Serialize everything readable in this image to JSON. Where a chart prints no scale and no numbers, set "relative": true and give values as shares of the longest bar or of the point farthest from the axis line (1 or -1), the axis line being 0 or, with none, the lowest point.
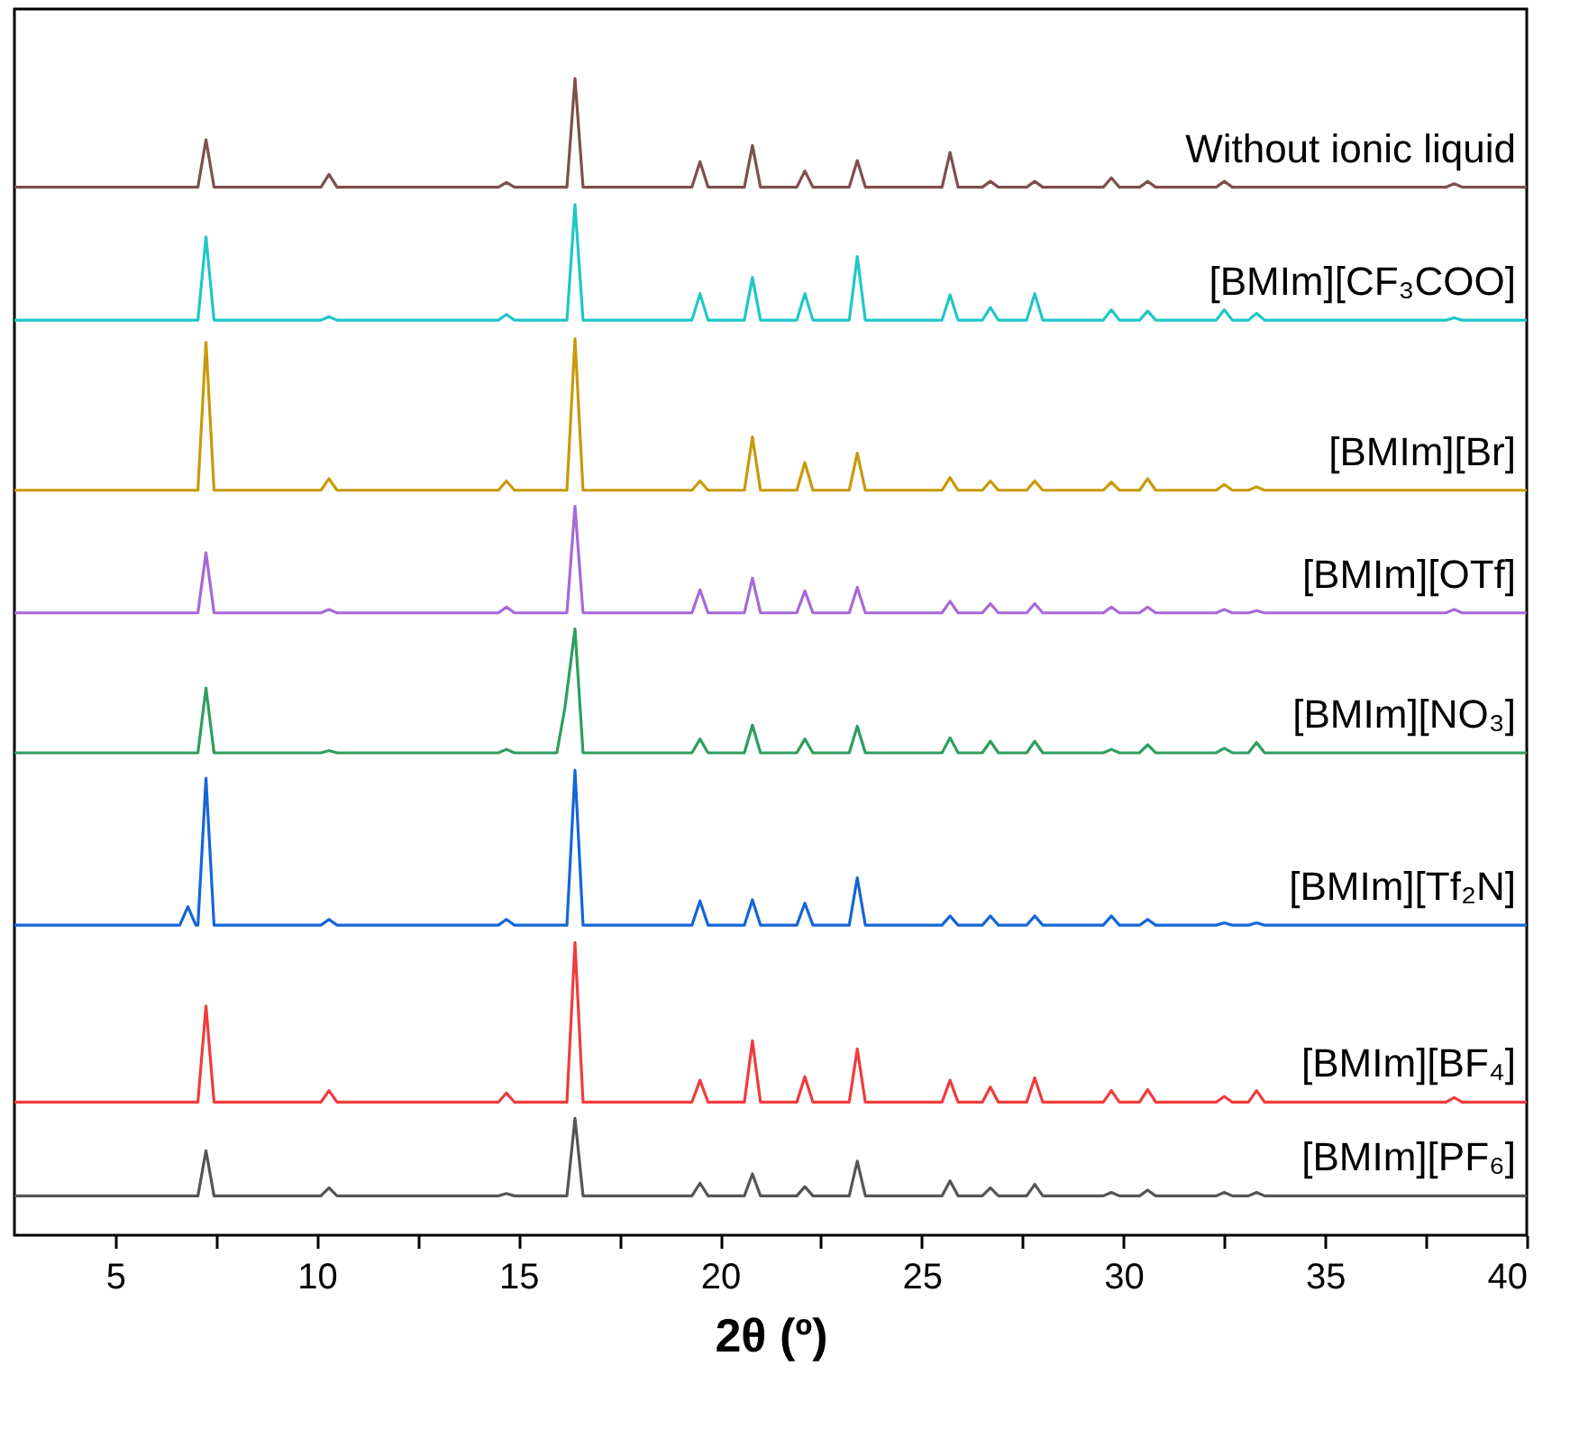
{
  "chart_data": {
    "type": "line",
    "relative": true,
    "xlabel": "2θ (º)",
    "x": [
      2.5,
      6.6,
      6.8,
      7.0,
      7.05,
      7.25,
      7.45,
      10.1,
      10.3,
      10.5,
      14.5,
      14.7,
      14.9,
      16.2,
      16.4,
      16.6,
      19.3,
      19.5,
      19.7,
      20.6,
      20.8,
      21.0,
      21.9,
      22.1,
      22.3,
      23.2,
      23.4,
      23.6,
      25.5,
      25.7,
      25.9,
      26.5,
      26.7,
      26.9,
      27.6,
      27.8,
      28.0,
      29.5,
      29.7,
      29.9,
      30.4,
      30.6,
      30.8,
      32.3,
      32.5,
      32.7,
      33.1,
      33.3,
      33.5,
      38.0,
      38.2,
      38.4,
      40
    ],
    "xlim": [
      2.5,
      40
    ],
    "xticks": [
      5,
      {
        "value": 7.5,
        "label": null
      },
      10,
      {
        "value": 12.5,
        "label": null
      },
      15,
      {
        "value": 17.5,
        "label": null
      },
      20,
      {
        "value": 22.5,
        "label": null
      },
      25,
      {
        "value": 27.5,
        "label": null
      },
      30,
      {
        "value": 32.5,
        "label": null
      },
      35,
      {
        "value": 37.5,
        "label": null
      },
      40
    ],
    "series": [
      {
        "name": "Without ionic liquid",
        "color": "#7f4f4f",
        "values": [
          0.906,
          0.906,
          0.906,
          0.906,
          0.906,
          0.947,
          0.906,
          0.906,
          0.917,
          0.906,
          0.906,
          0.91,
          0.906,
          0.906,
          1,
          0.906,
          0.906,
          0.928,
          0.906,
          0.906,
          0.942,
          0.906,
          0.906,
          0.92,
          0.906,
          0.906,
          0.929,
          0.906,
          0.906,
          0.936,
          0.906,
          0.906,
          0.911,
          0.906,
          0.906,
          0.911,
          0.906,
          0.906,
          0.914,
          0.906,
          0.906,
          0.911,
          0.906,
          0.906,
          0.911,
          0.906,
          0.906,
          0.906,
          0.906,
          0.906,
          0.909,
          0.906,
          0.906
        ]
      },
      {
        "name": "[BMIm][CF₃COO]",
        "color": "#1fc7c7",
        "values": [
          0.791,
          0.791,
          0.791,
          0.791,
          0.791,
          0.863,
          0.791,
          0.791,
          0.794,
          0.791,
          0.791,
          0.796,
          0.791,
          0.791,
          0.891,
          0.791,
          0.791,
          0.814,
          0.791,
          0.791,
          0.828,
          0.791,
          0.791,
          0.814,
          0.791,
          0.791,
          0.846,
          0.791,
          0.791,
          0.813,
          0.791,
          0.791,
          0.802,
          0.791,
          0.791,
          0.814,
          0.791,
          0.791,
          0.8,
          0.791,
          0.791,
          0.799,
          0.791,
          0.791,
          0.8,
          0.791,
          0.791,
          0.797,
          0.791,
          0.791,
          0.793,
          0.791,
          0.791
        ]
      },
      {
        "name": "[BMIm][Br]",
        "color": "#c89a0a",
        "values": [
          0.644,
          0.644,
          0.644,
          0.644,
          0.644,
          0.772,
          0.644,
          0.644,
          0.654,
          0.644,
          0.644,
          0.652,
          0.644,
          0.644,
          0.775,
          0.644,
          0.644,
          0.652,
          0.644,
          0.644,
          0.69,
          0.644,
          0.644,
          0.668,
          0.644,
          0.644,
          0.676,
          0.644,
          0.644,
          0.655,
          0.644,
          0.644,
          0.652,
          0.644,
          0.644,
          0.652,
          0.644,
          0.644,
          0.651,
          0.644,
          0.644,
          0.654,
          0.644,
          0.644,
          0.649,
          0.644,
          0.644,
          0.647,
          0.644,
          0.644,
          0.644,
          0.644,
          0.644
        ]
      },
      {
        "name": "[BMIm][OTf]",
        "color": "#a868d8",
        "values": [
          0.538,
          0.538,
          0.538,
          0.538,
          0.538,
          0.59,
          0.538,
          0.538,
          0.541,
          0.538,
          0.538,
          0.543,
          0.538,
          0.538,
          0.63,
          0.538,
          0.538,
          0.558,
          0.538,
          0.538,
          0.568,
          0.538,
          0.538,
          0.557,
          0.538,
          0.538,
          0.56,
          0.538,
          0.538,
          0.548,
          0.538,
          0.538,
          0.546,
          0.538,
          0.538,
          0.546,
          0.538,
          0.538,
          0.543,
          0.538,
          0.538,
          0.543,
          0.538,
          0.538,
          0.541,
          0.538,
          0.538,
          0.54,
          0.538,
          0.538,
          0.541,
          0.538,
          0.538
        ]
      },
      {
        "name": "[BMIm][NO₃]",
        "color": "#2e9e5e",
        "x": [
          2.5,
          6.6,
          6.8,
          7.0,
          7.05,
          7.25,
          7.45,
          10.1,
          10.3,
          10.5,
          14.5,
          14.7,
          14.9,
          15.95,
          16.15,
          16.4,
          16.6,
          19.3,
          19.5,
          19.7,
          20.6,
          20.8,
          21.0,
          21.9,
          22.1,
          22.3,
          23.2,
          23.4,
          23.6,
          25.5,
          25.7,
          25.9,
          26.5,
          26.7,
          26.9,
          27.6,
          27.8,
          28.0,
          29.5,
          29.7,
          29.9,
          30.4,
          30.6,
          30.8,
          32.3,
          32.5,
          32.7,
          33.1,
          33.3,
          33.5,
          38.0,
          38.2,
          38.4,
          40
        ],
        "values": [
          0.417,
          0.417,
          0.417,
          0.417,
          0.417,
          0.473,
          0.417,
          0.417,
          0.419,
          0.417,
          0.417,
          0.42,
          0.417,
          0.417,
          0.456,
          0.524,
          0.417,
          0.417,
          0.429,
          0.417,
          0.417,
          0.441,
          0.417,
          0.417,
          0.429,
          0.417,
          0.417,
          0.44,
          0.417,
          0.417,
          0.43,
          0.417,
          0.417,
          0.427,
          0.417,
          0.417,
          0.427,
          0.417,
          0.417,
          0.42,
          0.417,
          0.417,
          0.424,
          0.417,
          0.417,
          0.421,
          0.417,
          0.417,
          0.426,
          0.417,
          0.417,
          0.417,
          0.417,
          0.417
        ]
      },
      {
        "name": "[BMIm][Tf₂N]",
        "color": "#1565d8",
        "values": [
          0.268,
          0.268,
          0.284,
          0.268,
          0.268,
          0.395,
          0.268,
          0.268,
          0.273,
          0.268,
          0.268,
          0.273,
          0.268,
          0.268,
          0.402,
          0.268,
          0.268,
          0.289,
          0.268,
          0.268,
          0.29,
          0.268,
          0.268,
          0.287,
          0.268,
          0.268,
          0.309,
          0.268,
          0.268,
          0.276,
          0.268,
          0.268,
          0.276,
          0.268,
          0.268,
          0.276,
          0.268,
          0.268,
          0.276,
          0.268,
          0.268,
          0.273,
          0.268,
          0.268,
          0.27,
          0.268,
          0.268,
          0.27,
          0.268,
          0.268,
          0.268,
          0.268,
          0.268
        ]
      },
      {
        "name": "[BMIm][BF₄]",
        "color": "#f03c3c",
        "values": [
          0.115,
          0.115,
          0.115,
          0.115,
          0.115,
          0.198,
          0.115,
          0.115,
          0.125,
          0.115,
          0.115,
          0.123,
          0.115,
          0.115,
          0.253,
          0.115,
          0.115,
          0.134,
          0.115,
          0.115,
          0.168,
          0.115,
          0.115,
          0.137,
          0.115,
          0.115,
          0.161,
          0.115,
          0.115,
          0.134,
          0.115,
          0.115,
          0.128,
          0.115,
          0.115,
          0.136,
          0.115,
          0.115,
          0.125,
          0.115,
          0.115,
          0.126,
          0.115,
          0.115,
          0.12,
          0.115,
          0.115,
          0.125,
          0.115,
          0.115,
          0.119,
          0.115,
          0.115
        ]
      },
      {
        "name": "[BMIm][PF₆]",
        "color": "#555555",
        "values": [
          0.034,
          0.034,
          0.034,
          0.034,
          0.034,
          0.073,
          0.034,
          0.034,
          0.041,
          0.034,
          0.034,
          0.036,
          0.034,
          0.034,
          0.101,
          0.034,
          0.034,
          0.045,
          0.034,
          0.034,
          0.053,
          0.034,
          0.034,
          0.042,
          0.034,
          0.034,
          0.064,
          0.034,
          0.034,
          0.047,
          0.034,
          0.034,
          0.041,
          0.034,
          0.034,
          0.044,
          0.034,
          0.034,
          0.037,
          0.034,
          0.034,
          0.039,
          0.034,
          0.034,
          0.037,
          0.034,
          0.034,
          0.037,
          0.034,
          0.034,
          0.034,
          0.034,
          0.034
        ]
      }
    ]
  }
}
